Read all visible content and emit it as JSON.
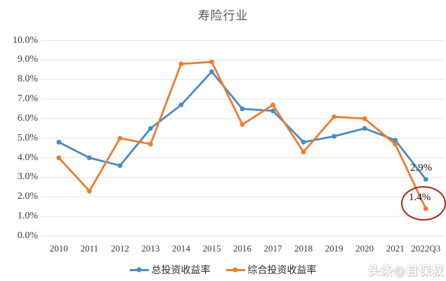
{
  "watermark": "头条@自保叔",
  "annotations": {
    "total": "2.9%",
    "comprehensive": "1.4%"
  },
  "colors": {
    "series_total": "#4a8bc4",
    "series_comprehensive": "#ee7c2f",
    "gridline": "#e5e5e5",
    "title_text": "#595959",
    "tick_text": "#3a3a3a",
    "highlight_ellipse": "#b02418",
    "annotation_text": "#141414"
  },
  "chart_data": {
    "type": "line",
    "title": "寿险行业",
    "categories": [
      "2010",
      "2011",
      "2012",
      "2013",
      "2014",
      "2015",
      "2016",
      "2017",
      "2018",
      "2019",
      "2020",
      "2021",
      "2022Q3"
    ],
    "series": [
      {
        "name": "总投资收益率",
        "color": "#4a8bc4",
        "values": [
          4.8,
          4.0,
          3.6,
          5.5,
          6.7,
          8.4,
          6.5,
          6.4,
          4.8,
          5.1,
          5.5,
          4.9,
          2.9
        ]
      },
      {
        "name": "综合投资收益率",
        "color": "#ee7c2f",
        "values": [
          4.0,
          2.3,
          5.0,
          4.7,
          8.8,
          8.9,
          5.7,
          6.7,
          4.3,
          6.1,
          6.0,
          4.7,
          1.4
        ]
      }
    ],
    "xlabel": "",
    "ylabel": "",
    "ylim": [
      0,
      10
    ],
    "y_tick_step": 1,
    "y_tick_labels": [
      "10.0%",
      "9.0%",
      "8.0%",
      "7.0%",
      "6.0%",
      "5.0%",
      "4.0%",
      "3.0%",
      "2.0%",
      "1.0%",
      "0.0%"
    ],
    "grid": "horizontal",
    "legend_position": "bottom",
    "annotations": [
      {
        "text": "2.9%",
        "series": "总投资收益率",
        "x": "2022Q3",
        "circled": false
      },
      {
        "text": "1.4%",
        "series": "综合投资收益率",
        "x": "2022Q3",
        "circled": true
      }
    ]
  }
}
